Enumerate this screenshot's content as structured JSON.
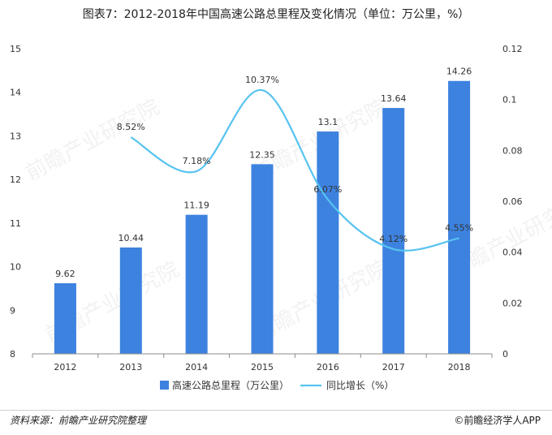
{
  "title": "图表7：2012-2018年中国高速公路总里程及变化情况（单位：万公里，%）",
  "source": "资料来源：前瞻产业研究院整理",
  "brand": "©前瞻经济学人APP",
  "watermark": "前瞻产业研究院",
  "colors": {
    "bar": "#3d82df",
    "line": "#57c3f0",
    "axis": "#8c8c8c",
    "text": "#333333"
  },
  "chart_data": {
    "type": "bar",
    "categories": [
      "2012",
      "2013",
      "2014",
      "2015",
      "2016",
      "2017",
      "2018"
    ],
    "series": [
      {
        "name": "高速公路总里程（万公里）",
        "type": "bar",
        "axis": "left",
        "values": [
          9.62,
          10.44,
          11.19,
          12.35,
          13.1,
          13.64,
          14.26
        ],
        "labels": [
          "9.62",
          "10.44",
          "11.19",
          "12.35",
          "13.1",
          "13.64",
          "14.26"
        ]
      },
      {
        "name": "同比增长（%）",
        "type": "line",
        "axis": "right",
        "values": [
          null,
          0.0852,
          0.0718,
          0.1037,
          0.0607,
          0.0412,
          0.0455
        ],
        "labels": [
          null,
          "8.52%",
          "7.18%",
          "10.37%",
          "6.07%",
          "4.12%",
          "4.55%"
        ]
      }
    ],
    "ylim_left": [
      8,
      15
    ],
    "yticks_left": [
      "8",
      "9",
      "10",
      "11",
      "12",
      "13",
      "14",
      "15"
    ],
    "ylim_right": [
      0,
      0.12
    ],
    "yticks_right": [
      "0",
      "0.02",
      "0.04",
      "0.06",
      "0.08",
      "0.1",
      "0.12"
    ],
    "legend_position": "bottom",
    "grid": false
  }
}
